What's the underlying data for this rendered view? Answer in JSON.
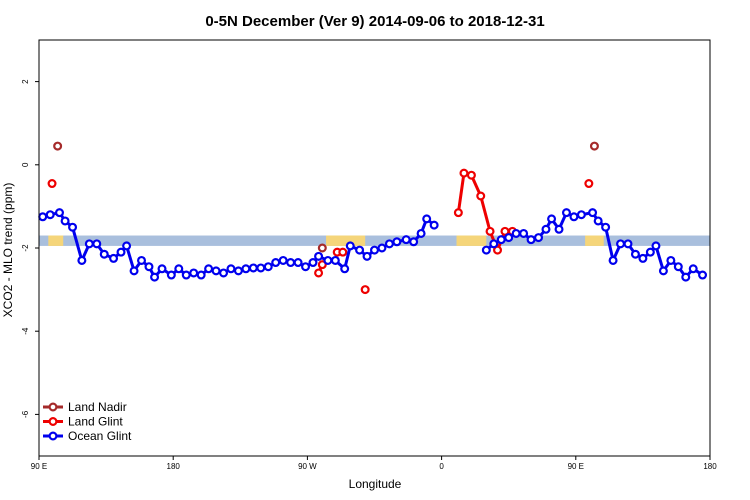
{
  "chart_data": {
    "type": "line",
    "title": "0-5N December (Ver 9)   2014-09-06 to 2018-12-31",
    "xlabel": "Longitude",
    "ylabel": "XCO2 - MLO trend (ppm)",
    "xlim": [
      0,
      360
    ],
    "ylim": [
      -7,
      3
    ],
    "x_ticks": [
      {
        "value": 0,
        "label": "90 E"
      },
      {
        "value": 72,
        "label": "180"
      },
      {
        "value": 144,
        "label": "90 W"
      },
      {
        "value": 216,
        "label": "0"
      },
      {
        "value": 288,
        "label": "90 E"
      },
      {
        "value": 360,
        "label": "180"
      }
    ],
    "y_ticks": [
      {
        "value": 2,
        "label": "2"
      },
      {
        "value": 0,
        "label": "0"
      },
      {
        "value": -2,
        "label": "-2"
      },
      {
        "value": -4,
        "label": "-4"
      },
      {
        "value": -6,
        "label": "-6"
      }
    ],
    "band": {
      "y_range": [
        -1.95,
        -1.7
      ],
      "color": "#a9bfdd",
      "highlight_color": "#f5d57a",
      "highlight_ranges": [
        [
          5,
          13
        ],
        [
          154,
          175
        ],
        [
          224,
          240
        ],
        [
          293,
          303
        ]
      ]
    },
    "legend_position": "bottom-left",
    "series": [
      {
        "name": "Land Nadir",
        "color": "#a52a2a",
        "points": [
          [
            10,
            0.45
          ],
          [
            152,
            -2.0
          ],
          [
            298,
            0.45
          ]
        ]
      },
      {
        "name": "Land Glint",
        "color": "#ee0000",
        "points": [
          [
            7,
            -0.45
          ],
          [
            150,
            -2.6
          ],
          [
            152,
            -2.4
          ],
          [
            160,
            -2.1
          ],
          [
            163,
            -2.1
          ],
          [
            175,
            -3.0
          ],
          [
            225,
            -1.15
          ],
          [
            228,
            -0.2
          ],
          [
            232,
            -0.25
          ],
          [
            237,
            -0.75
          ],
          [
            242,
            -1.6
          ],
          [
            246,
            -2.05
          ],
          [
            250,
            -1.6
          ],
          [
            254,
            -1.6
          ],
          [
            295,
            -0.45
          ]
        ]
      },
      {
        "name": "Ocean Glint",
        "color": "#0000ee",
        "points": [
          [
            2,
            -1.25
          ],
          [
            6,
            -1.2
          ],
          [
            11,
            -1.15
          ],
          [
            14,
            -1.35
          ],
          [
            18,
            -1.5
          ],
          [
            23,
            -2.3
          ],
          [
            27,
            -1.9
          ],
          [
            31,
            -1.9
          ],
          [
            35,
            -2.15
          ],
          [
            40,
            -2.25
          ],
          [
            44,
            -2.1
          ],
          [
            47,
            -1.95
          ],
          [
            51,
            -2.55
          ],
          [
            55,
            -2.3
          ],
          [
            59,
            -2.45
          ],
          [
            62,
            -2.7
          ],
          [
            66,
            -2.5
          ],
          [
            71,
            -2.65
          ],
          [
            75,
            -2.5
          ],
          [
            79,
            -2.65
          ],
          [
            83,
            -2.6
          ],
          [
            87,
            -2.65
          ],
          [
            91,
            -2.5
          ],
          [
            95,
            -2.55
          ],
          [
            99,
            -2.6
          ],
          [
            103,
            -2.5
          ],
          [
            107,
            -2.55
          ],
          [
            111,
            -2.5
          ],
          [
            115,
            -2.48
          ],
          [
            119,
            -2.48
          ],
          [
            123,
            -2.45
          ],
          [
            127,
            -2.35
          ],
          [
            131,
            -2.3
          ],
          [
            135,
            -2.35
          ],
          [
            139,
            -2.35
          ],
          [
            143,
            -2.45
          ],
          [
            147,
            -2.35
          ],
          [
            150,
            -2.2
          ],
          [
            155,
            -2.3
          ],
          [
            159,
            -2.3
          ],
          [
            164,
            -2.5
          ],
          [
            167,
            -1.95
          ],
          [
            172,
            -2.05
          ],
          [
            176,
            -2.2
          ],
          [
            180,
            -2.05
          ],
          [
            184,
            -2.0
          ],
          [
            188,
            -1.9
          ],
          [
            192,
            -1.85
          ],
          [
            197,
            -1.8
          ],
          [
            201,
            -1.85
          ],
          [
            205,
            -1.65
          ],
          [
            208,
            -1.3
          ],
          [
            212,
            -1.45
          ],
          [
            240,
            -2.05
          ],
          [
            244,
            -1.9
          ],
          [
            248,
            -1.8
          ],
          [
            252,
            -1.75
          ],
          [
            256,
            -1.65
          ],
          [
            260,
            -1.65
          ],
          [
            264,
            -1.8
          ],
          [
            268,
            -1.75
          ],
          [
            272,
            -1.55
          ],
          [
            275,
            -1.3
          ],
          [
            279,
            -1.55
          ],
          [
            283,
            -1.15
          ],
          [
            287,
            -1.25
          ],
          [
            291,
            -1.2
          ],
          [
            297,
            -1.15
          ],
          [
            300,
            -1.35
          ],
          [
            304,
            -1.5
          ],
          [
            308,
            -2.3
          ],
          [
            312,
            -1.9
          ],
          [
            316,
            -1.9
          ],
          [
            320,
            -2.15
          ],
          [
            324,
            -2.25
          ],
          [
            328,
            -2.1
          ],
          [
            331,
            -1.95
          ],
          [
            335,
            -2.55
          ],
          [
            339,
            -2.3
          ],
          [
            343,
            -2.45
          ],
          [
            347,
            -2.7
          ],
          [
            351,
            -2.5
          ],
          [
            356,
            -2.65
          ]
        ]
      }
    ]
  }
}
